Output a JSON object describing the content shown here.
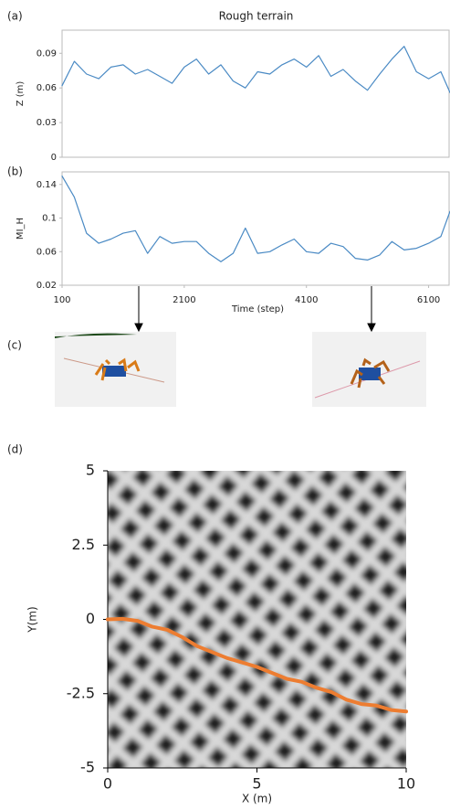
{
  "chart_data": [
    {
      "type": "line",
      "panel": "(a)",
      "title": "Rough terrain",
      "ylabel": "Z (m)",
      "x": [
        100,
        300,
        500,
        700,
        900,
        1100,
        1300,
        1500,
        1700,
        1900,
        2100,
        2300,
        2500,
        2700,
        2900,
        3100,
        3300,
        3500,
        3700,
        3900,
        4100,
        4300,
        4500,
        4700,
        4900,
        5100,
        5300,
        5500,
        5700,
        5900,
        6100,
        6300,
        6450
      ],
      "values": [
        0.062,
        0.083,
        0.072,
        0.068,
        0.078,
        0.08,
        0.072,
        0.076,
        0.07,
        0.064,
        0.078,
        0.085,
        0.072,
        0.08,
        0.066,
        0.06,
        0.074,
        0.072,
        0.08,
        0.085,
        0.078,
        0.088,
        0.07,
        0.076,
        0.066,
        0.058,
        0.072,
        0.085,
        0.096,
        0.074,
        0.068,
        0.074,
        0.056
      ],
      "color": "#4a8ac4",
      "xlim": [
        100,
        6450
      ],
      "ylim": [
        0,
        0.11
      ],
      "yticks": [
        0,
        0.03,
        0.06,
        0.09
      ]
    },
    {
      "type": "line",
      "panel": "(b)",
      "ylabel": "MI_H",
      "xlabel": "Time (step)",
      "x": [
        100,
        300,
        500,
        700,
        900,
        1100,
        1300,
        1500,
        1700,
        1900,
        2100,
        2300,
        2500,
        2700,
        2900,
        3100,
        3300,
        3500,
        3700,
        3900,
        4100,
        4300,
        4500,
        4700,
        4900,
        5100,
        5300,
        5500,
        5700,
        5900,
        6100,
        6300,
        6450
      ],
      "values": [
        0.15,
        0.125,
        0.082,
        0.07,
        0.075,
        0.082,
        0.085,
        0.058,
        0.078,
        0.07,
        0.072,
        0.072,
        0.058,
        0.048,
        0.058,
        0.088,
        0.058,
        0.06,
        0.068,
        0.075,
        0.06,
        0.058,
        0.07,
        0.066,
        0.052,
        0.05,
        0.056,
        0.072,
        0.062,
        0.064,
        0.07,
        0.078,
        0.108
      ],
      "color": "#4a8ac4",
      "xlim": [
        100,
        6450
      ],
      "ylim": [
        0.02,
        0.155
      ],
      "yticks": [
        0.02,
        0.06,
        0.1,
        0.14
      ],
      "xticks": [
        100,
        2100,
        4100,
        6100
      ]
    },
    {
      "type": "line",
      "panel": "(d)",
      "ylabel": "Y(m)",
      "xlabel": "X (m)",
      "x": [
        0,
        0.5,
        1,
        1.5,
        2,
        2.5,
        3,
        3.5,
        4,
        4.5,
        5,
        5.5,
        6,
        6.5,
        7,
        7.5,
        8,
        8.5,
        9,
        9.5,
        10
      ],
      "values": [
        0,
        0.02,
        -0.05,
        -0.25,
        -0.35,
        -0.6,
        -0.9,
        -1.1,
        -1.3,
        -1.45,
        -1.6,
        -1.8,
        -2.0,
        -2.1,
        -2.3,
        -2.45,
        -2.7,
        -2.85,
        -2.9,
        -3.05,
        -3.1
      ],
      "color": "#ed7d31",
      "xlim": [
        0,
        10
      ],
      "ylim": [
        -5,
        5
      ],
      "yticks": [
        5,
        2.5,
        0,
        -2.5,
        -5
      ],
      "xticks": [
        0,
        5,
        10
      ]
    }
  ],
  "images_panel": {
    "label": "(c)"
  }
}
